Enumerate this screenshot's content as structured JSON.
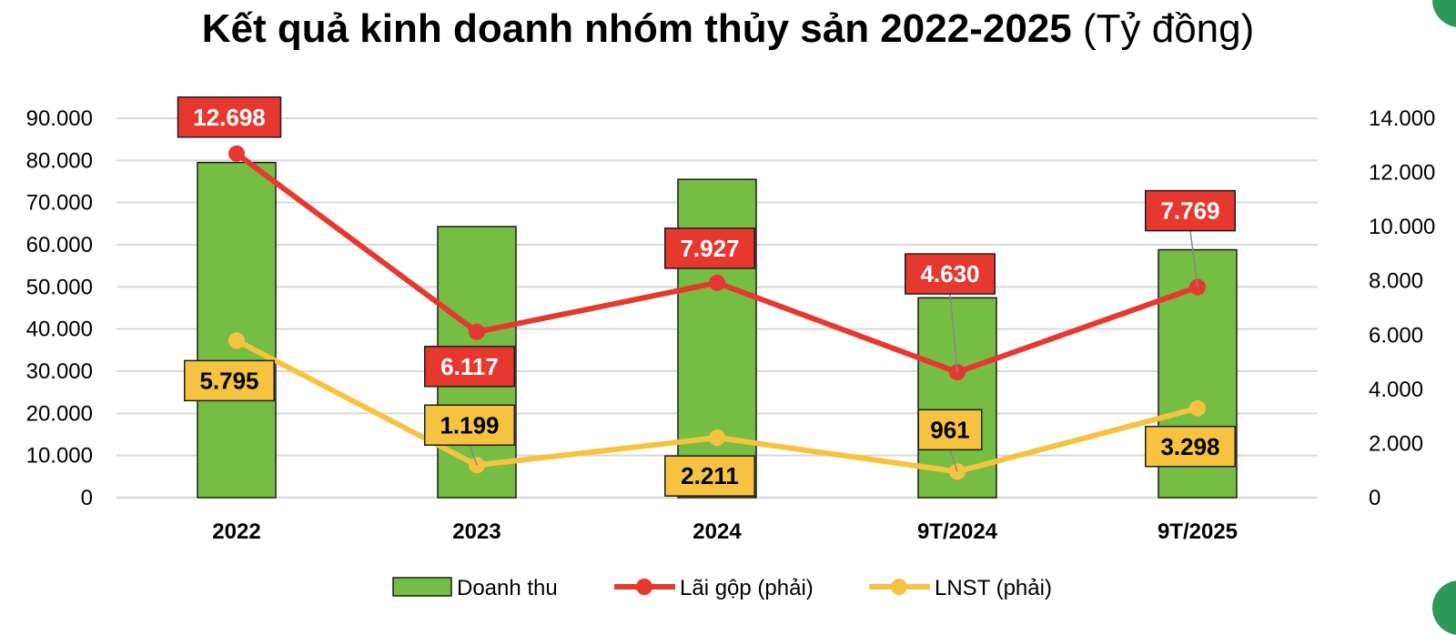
{
  "title": "Kết quả kinh doanh nhóm thủy sản 2022-2025",
  "title_unit": "(Tỷ đồng)",
  "colors": {
    "bar": "#76bd43",
    "bar_border": "#1c1c1c",
    "gross": "#e6382e",
    "net": "#f6c340",
    "grid": "#d9d9d9"
  },
  "chart_data": {
    "type": "bar",
    "categories": [
      "2022",
      "2023",
      "2024",
      "9T/2024",
      "9T/2025"
    ],
    "series": [
      {
        "name": "Doanh thu",
        "type": "bar",
        "axis": "left",
        "values": [
          79500,
          64300,
          75500,
          47400,
          58800
        ]
      },
      {
        "name": "Lãi gộp (phải)",
        "type": "line",
        "axis": "right",
        "values": [
          12698,
          6117,
          7927,
          4630,
          7769
        ],
        "labels": [
          "12.698",
          "6.117",
          "7.927",
          "4.630",
          "7.769"
        ]
      },
      {
        "name": "LNST (phải)",
        "type": "line",
        "axis": "right",
        "values": [
          5795,
          1199,
          2211,
          961,
          3298
        ],
        "labels": [
          "5.795",
          "1.199",
          "2.211",
          "961",
          "3.298"
        ]
      }
    ],
    "left_axis": {
      "ylim": [
        0,
        90000
      ],
      "ticks": [
        "0",
        "10.000",
        "20.000",
        "30.000",
        "40.000",
        "50.000",
        "60.000",
        "70.000",
        "80.000",
        "90.000"
      ]
    },
    "right_axis": {
      "ylim": [
        0,
        14000
      ],
      "ticks": [
        "0",
        "2.000",
        "4.000",
        "6.000",
        "8.000",
        "10.000",
        "12.000",
        "14.000"
      ]
    },
    "grid": true,
    "legend_position": "bottom"
  }
}
